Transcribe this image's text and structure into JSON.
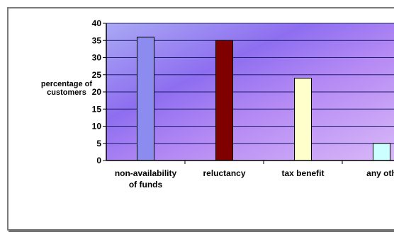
{
  "chart_data": {
    "type": "bar",
    "title": "",
    "xlabel": "",
    "ylabel": "percentage of customers",
    "ylabel_lines": [
      "percentage of",
      "customers"
    ],
    "ylim": [
      0,
      40
    ],
    "yticks": [
      0,
      5,
      10,
      15,
      20,
      25,
      30,
      35,
      40
    ],
    "grid": true,
    "legend": "none",
    "categories": [
      "non-availability of funds",
      "reluctancy",
      "tax benefit",
      "any oth"
    ],
    "category_lines": [
      [
        "non-availability",
        "of funds"
      ],
      [
        "reluctancy"
      ],
      [
        "tax benefit"
      ],
      [
        "any oth"
      ]
    ],
    "values": [
      36,
      35,
      24,
      5
    ],
    "colors": [
      "#8c8cf0",
      "#800000",
      "#ffffcc",
      "#ccffff"
    ]
  }
}
